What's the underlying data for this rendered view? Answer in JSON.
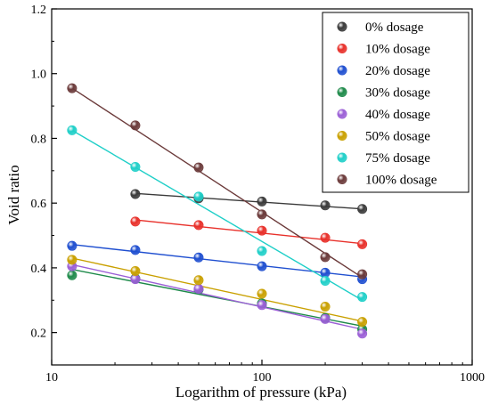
{
  "chart_data": {
    "type": "scatter",
    "title": "",
    "xlabel": "Logarithm of pressure (kPa)",
    "ylabel": "Void ratio",
    "xscale": "log",
    "xlim": [
      10,
      1000
    ],
    "ylim": [
      0.1,
      1.2
    ],
    "xticks": [
      10,
      100,
      1000
    ],
    "xtick_labels": [
      "10",
      "100",
      "1000"
    ],
    "yticks": [
      0.2,
      0.4,
      0.6,
      0.8,
      1.0,
      1.2
    ],
    "ytick_labels": [
      "0.2",
      "0.4",
      "0.6",
      "0.8",
      "1.0",
      "1.2"
    ],
    "grid": false,
    "legend_position": "top-right",
    "series": [
      {
        "name": "0% dosage",
        "color": "#3a3a3a",
        "x": [
          25,
          50,
          100,
          200,
          300
        ],
        "y": [
          0.628,
          0.615,
          0.605,
          0.593,
          0.582
        ],
        "fit": [
          [
            25,
            0.63
          ],
          [
            300,
            0.582
          ]
        ]
      },
      {
        "name": "10% dosage",
        "color": "#e8302a",
        "x": [
          25,
          50,
          100,
          200,
          300
        ],
        "y": [
          0.543,
          0.532,
          0.515,
          0.493,
          0.473
        ],
        "fit": [
          [
            25,
            0.548
          ],
          [
            300,
            0.475
          ]
        ]
      },
      {
        "name": "20% dosage",
        "color": "#1f4fd0",
        "x": [
          12.5,
          25,
          50,
          100,
          200,
          300
        ],
        "y": [
          0.468,
          0.455,
          0.432,
          0.405,
          0.385,
          0.365
        ],
        "fit": [
          [
            12.5,
            0.472
          ],
          [
            300,
            0.372
          ]
        ]
      },
      {
        "name": "30% dosage",
        "color": "#1e8a4a",
        "x": [
          12.5,
          25,
          50,
          100,
          200,
          300
        ],
        "y": [
          0.377,
          0.367,
          0.333,
          0.29,
          0.245,
          0.21
        ],
        "fit": [
          [
            12.5,
            0.395
          ],
          [
            300,
            0.22
          ]
        ]
      },
      {
        "name": "40% dosage",
        "color": "#9b5fd6",
        "x": [
          12.5,
          25,
          50,
          100,
          200,
          300
        ],
        "y": [
          0.405,
          0.365,
          0.335,
          0.285,
          0.242,
          0.197
        ],
        "fit": [
          [
            12.5,
            0.41
          ],
          [
            300,
            0.21
          ]
        ]
      },
      {
        "name": "50% dosage",
        "color": "#c9a000",
        "x": [
          12.5,
          25,
          50,
          100,
          200,
          300
        ],
        "y": [
          0.425,
          0.39,
          0.362,
          0.32,
          0.28,
          0.233
        ],
        "fit": [
          [
            12.5,
            0.43
          ],
          [
            300,
            0.235
          ]
        ]
      },
      {
        "name": "75% dosage",
        "color": "#1fcfc8",
        "x": [
          12.5,
          25,
          50,
          100,
          200,
          300
        ],
        "y": [
          0.825,
          0.712,
          0.62,
          0.452,
          0.36,
          0.31
        ],
        "fit": [
          [
            12.5,
            0.825
          ],
          [
            300,
            0.3
          ]
        ]
      },
      {
        "name": "100% dosage",
        "color": "#6b3a3a",
        "x": [
          12.5,
          25,
          50,
          100,
          200,
          300
        ],
        "y": [
          0.955,
          0.84,
          0.71,
          0.565,
          0.433,
          0.38
        ],
        "fit": [
          [
            12.5,
            0.955
          ],
          [
            300,
            0.37
          ]
        ]
      }
    ]
  }
}
